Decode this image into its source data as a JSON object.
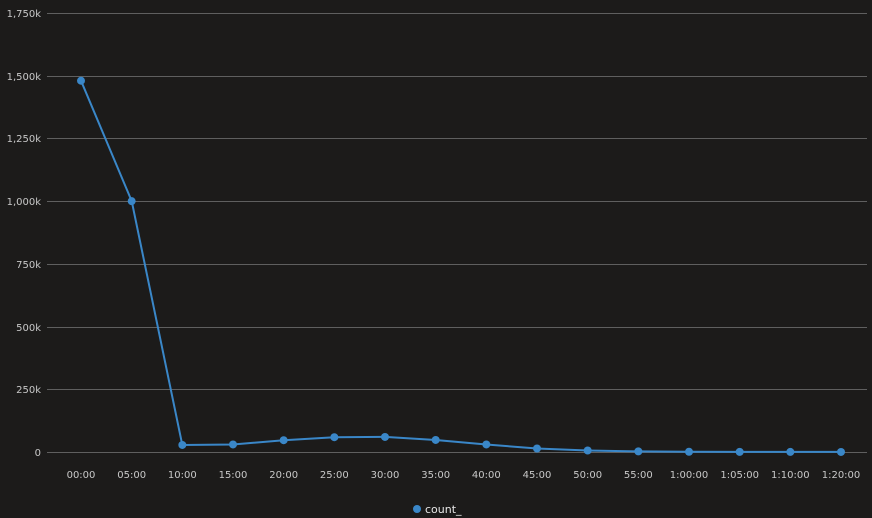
{
  "chart_data": {
    "type": "line",
    "title": "",
    "xlabel": "",
    "ylabel": "",
    "categories": [
      "00:00",
      "05:00",
      "10:00",
      "15:00",
      "20:00",
      "25:00",
      "30:00",
      "35:00",
      "40:00",
      "45:00",
      "50:00",
      "55:00",
      "1:00:00",
      "1:05:00",
      "1:10:00",
      "1:20:00"
    ],
    "series": [
      {
        "name": "count_",
        "color": "#3a87c8",
        "values": [
          1480000,
          1000000,
          28000,
          30000,
          47000,
          59000,
          60000,
          48000,
          30000,
          14000,
          6000,
          2500,
          1000,
          500,
          300,
          200
        ]
      }
    ],
    "ylim": [
      0,
      1750000
    ],
    "y_ticks": [
      0,
      250000,
      500000,
      750000,
      1000000,
      1250000,
      1500000,
      1750000
    ],
    "y_tick_labels": [
      "0",
      "250k",
      "500k",
      "750k",
      "1,000k",
      "1,250k",
      "1,500k",
      "1,750k"
    ],
    "grid": true,
    "legend_position": "bottom-center"
  }
}
